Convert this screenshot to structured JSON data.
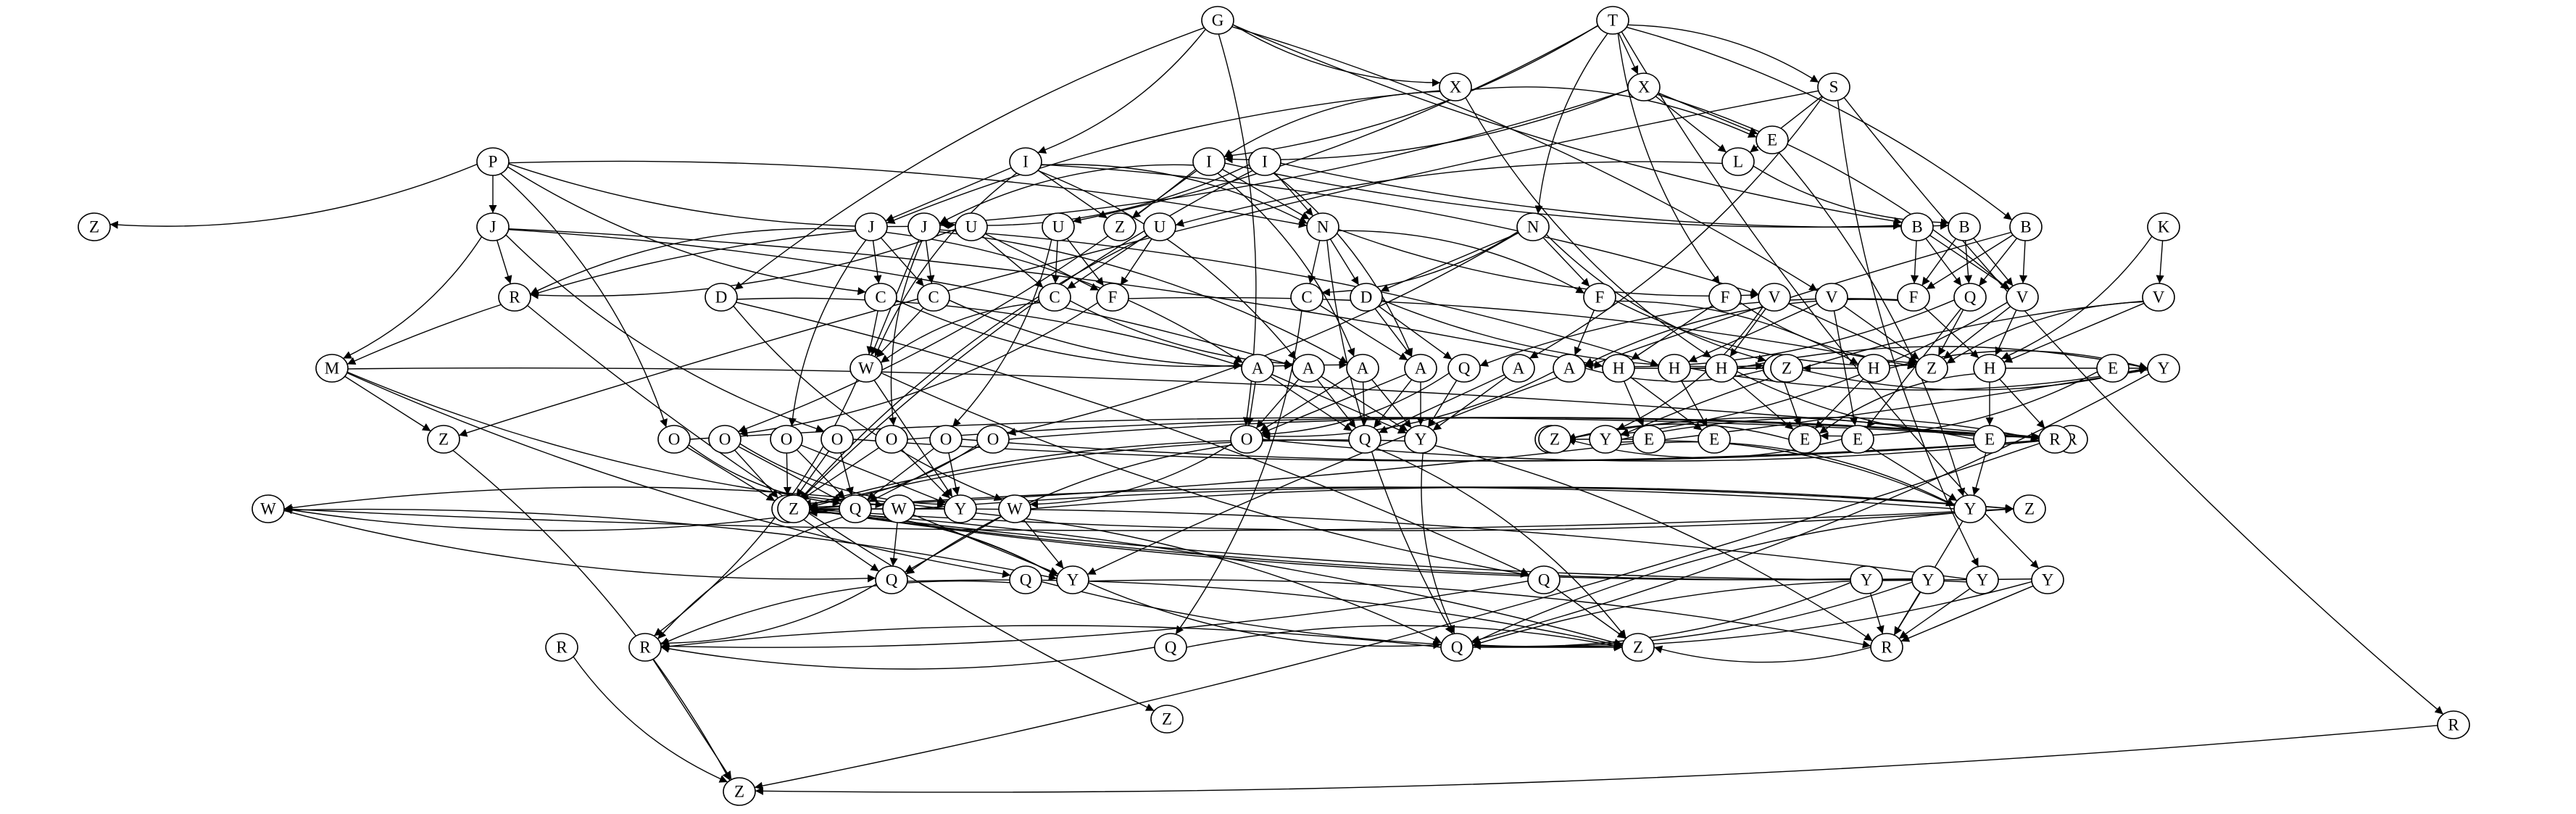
{
  "graph": {
    "nodes": [
      {
        "id": "n_T",
        "label": "T"
      },
      {
        "id": "n_G",
        "label": "G"
      },
      {
        "id": "n_X2",
        "label": "X"
      },
      {
        "id": "n_S",
        "label": "S"
      },
      {
        "id": "n_X1",
        "label": "X"
      },
      {
        "id": "n_E1",
        "label": "E"
      },
      {
        "id": "n_L",
        "label": "L"
      },
      {
        "id": "n_P",
        "label": "P"
      },
      {
        "id": "n_I1",
        "label": "I"
      },
      {
        "id": "n_I2",
        "label": "I"
      },
      {
        "id": "n_I3",
        "label": "I"
      },
      {
        "id": "n_Z1",
        "label": "Z"
      },
      {
        "id": "n_J1",
        "label": "J"
      },
      {
        "id": "n_J2",
        "label": "J"
      },
      {
        "id": "n_J3",
        "label": "J"
      },
      {
        "id": "n_U1",
        "label": "U"
      },
      {
        "id": "n_U2",
        "label": "U"
      },
      {
        "id": "n_U3",
        "label": "U"
      },
      {
        "id": "n_Z2",
        "label": "Z"
      },
      {
        "id": "n_N1",
        "label": "N"
      },
      {
        "id": "n_N2",
        "label": "N"
      },
      {
        "id": "n_B1",
        "label": "B"
      },
      {
        "id": "n_B2",
        "label": "B"
      },
      {
        "id": "n_B3",
        "label": "B"
      },
      {
        "id": "n_K",
        "label": "K"
      },
      {
        "id": "n_R1",
        "label": "R"
      },
      {
        "id": "n_C1",
        "label": "C"
      },
      {
        "id": "n_C2",
        "label": "C"
      },
      {
        "id": "n_C3",
        "label": "C"
      },
      {
        "id": "n_C4",
        "label": "C"
      },
      {
        "id": "n_F1",
        "label": "F"
      },
      {
        "id": "n_D1",
        "label": "D"
      },
      {
        "id": "n_D2",
        "label": "D"
      },
      {
        "id": "n_F2",
        "label": "F"
      },
      {
        "id": "n_F3",
        "label": "F"
      },
      {
        "id": "n_F4",
        "label": "F"
      },
      {
        "id": "n_V1",
        "label": "V"
      },
      {
        "id": "n_V2",
        "label": "V"
      },
      {
        "id": "n_V3",
        "label": "V"
      },
      {
        "id": "n_V4",
        "label": "V"
      },
      {
        "id": "n_Q1",
        "label": "Q"
      },
      {
        "id": "n_M",
        "label": "M"
      },
      {
        "id": "n_W1",
        "label": "W"
      },
      {
        "id": "n_A1",
        "label": "A"
      },
      {
        "id": "n_A2",
        "label": "A"
      },
      {
        "id": "n_A3",
        "label": "A"
      },
      {
        "id": "n_A4",
        "label": "A"
      },
      {
        "id": "n_A5",
        "label": "A"
      },
      {
        "id": "n_Q2",
        "label": "Q"
      },
      {
        "id": "n_A6",
        "label": "A"
      },
      {
        "id": "n_H1",
        "label": "H"
      },
      {
        "id": "n_H2",
        "label": "H"
      },
      {
        "id": "n_H3",
        "label": "H"
      },
      {
        "id": "n_H4",
        "label": "H"
      },
      {
        "id": "n_H5",
        "label": "H"
      },
      {
        "id": "n_H6",
        "label": "H"
      },
      {
        "id": "n_Z3",
        "label": "Z"
      },
      {
        "id": "n_Z4",
        "label": "Z"
      },
      {
        "id": "n_E2",
        "label": "E"
      },
      {
        "id": "n_Y1",
        "label": "Y"
      },
      {
        "id": "n_Z5",
        "label": "Z"
      },
      {
        "id": "n_O1",
        "label": "O"
      },
      {
        "id": "n_O2",
        "label": "O"
      },
      {
        "id": "n_O3",
        "label": "O"
      },
      {
        "id": "n_O4",
        "label": "O"
      },
      {
        "id": "n_O5",
        "label": "O"
      },
      {
        "id": "n_O6",
        "label": "O"
      },
      {
        "id": "n_O7",
        "label": "O"
      },
      {
        "id": "n_O8",
        "label": "O"
      },
      {
        "id": "n_Q3",
        "label": "Q"
      },
      {
        "id": "n_Y2",
        "label": "Y"
      },
      {
        "id": "n_E3",
        "label": "E"
      },
      {
        "id": "n_Z6",
        "label": "Z"
      },
      {
        "id": "n_Y3",
        "label": "Y"
      },
      {
        "id": "n_E4",
        "label": "E"
      },
      {
        "id": "n_E5",
        "label": "E"
      },
      {
        "id": "n_E6",
        "label": "E"
      },
      {
        "id": "n_R2",
        "label": "R"
      },
      {
        "id": "n_Z7",
        "label": "Z"
      },
      {
        "id": "n_E7",
        "label": "E"
      },
      {
        "id": "n_R3",
        "label": "R"
      },
      {
        "id": "n_Q4",
        "label": "Q"
      },
      {
        "id": "n_W2",
        "label": "W"
      },
      {
        "id": "n_Y4",
        "label": "Y"
      },
      {
        "id": "n_W3",
        "label": "W"
      },
      {
        "id": "n_Y5",
        "label": "Y"
      },
      {
        "id": "n_Z8",
        "label": "Z"
      },
      {
        "id": "n_W4",
        "label": "W"
      },
      {
        "id": "n_W5",
        "label": "W"
      },
      {
        "id": "n_Z9",
        "label": "Z"
      },
      {
        "id": "n_Q5",
        "label": "Q"
      },
      {
        "id": "n_Y6",
        "label": "Y"
      },
      {
        "id": "n_Y7",
        "label": "Y"
      },
      {
        "id": "n_Y8",
        "label": "Y"
      },
      {
        "id": "n_Y9",
        "label": "Y"
      },
      {
        "id": "n_Y10",
        "label": "Y"
      },
      {
        "id": "n_Q6",
        "label": "Q"
      },
      {
        "id": "n_Q7",
        "label": "Q"
      },
      {
        "id": "n_Q8",
        "label": "Q"
      },
      {
        "id": "n_Z10",
        "label": "Z"
      },
      {
        "id": "n_R4",
        "label": "R"
      },
      {
        "id": "n_Q9",
        "label": "Q"
      },
      {
        "id": "n_R5",
        "label": "R"
      },
      {
        "id": "n_R6",
        "label": "R"
      },
      {
        "id": "n_Z11",
        "label": "Z"
      },
      {
        "id": "n_R7",
        "label": "R"
      },
      {
        "id": "n_Z12",
        "label": "Z"
      }
    ],
    "edges": [
      [
        "n_T",
        "n_X2"
      ],
      [
        "n_T",
        "n_S"
      ],
      [
        "n_T",
        "n_N2"
      ],
      [
        "n_T",
        "n_I2"
      ],
      [
        "n_T",
        "n_U2"
      ],
      [
        "n_T",
        "n_F4"
      ],
      [
        "n_T",
        "n_B3"
      ],
      [
        "n_T",
        "n_Y7"
      ],
      [
        "n_G",
        "n_X1"
      ],
      [
        "n_G",
        "n_I1"
      ],
      [
        "n_G",
        "n_D1"
      ],
      [
        "n_G",
        "n_O1"
      ],
      [
        "n_G",
        "n_B1"
      ],
      [
        "n_G",
        "n_V2"
      ],
      [
        "n_X1",
        "n_I2"
      ],
      [
        "n_X1",
        "n_J1"
      ],
      [
        "n_X1",
        "n_E1"
      ],
      [
        "n_X1",
        "n_H3"
      ],
      [
        "n_X2",
        "n_L"
      ],
      [
        "n_X2",
        "n_E1"
      ],
      [
        "n_X2",
        "n_J3"
      ],
      [
        "n_X2",
        "n_I2"
      ],
      [
        "n_X2",
        "n_V3"
      ],
      [
        "n_S",
        "n_L"
      ],
      [
        "n_S",
        "n_A5"
      ],
      [
        "n_S",
        "n_R7"
      ],
      [
        "n_S",
        "n_Z5"
      ],
      [
        "n_S",
        "n_Y8"
      ],
      [
        "n_L",
        "n_U3"
      ],
      [
        "n_L",
        "n_B2"
      ],
      [
        "n_E1",
        "n_Y4"
      ],
      [
        "n_P",
        "n_J2"
      ],
      [
        "n_P",
        "n_Z1"
      ],
      [
        "n_P",
        "n_O2"
      ],
      [
        "n_P",
        "n_C1"
      ],
      [
        "n_P",
        "n_U1"
      ],
      [
        "n_P",
        "n_N1"
      ],
      [
        "n_I1",
        "n_J1"
      ],
      [
        "n_I1",
        "n_Z2"
      ],
      [
        "n_I1",
        "n_N1"
      ],
      [
        "n_I1",
        "n_W1"
      ],
      [
        "n_I1",
        "n_A2"
      ],
      [
        "n_I1",
        "n_V1"
      ],
      [
        "n_I2",
        "n_J3"
      ],
      [
        "n_I2",
        "n_Z2"
      ],
      [
        "n_I2",
        "n_N1"
      ],
      [
        "n_I2",
        "n_A3"
      ],
      [
        "n_I2",
        "n_O3"
      ],
      [
        "n_I2",
        "n_B1"
      ],
      [
        "n_I3",
        "n_J3"
      ],
      [
        "n_I3",
        "n_N1"
      ],
      [
        "n_I3",
        "n_W3"
      ],
      [
        "n_I3",
        "n_A4"
      ],
      [
        "n_I3",
        "n_B2"
      ],
      [
        "n_J1",
        "n_R1"
      ],
      [
        "n_J1",
        "n_M"
      ],
      [
        "n_J1",
        "n_C2"
      ],
      [
        "n_J1",
        "n_C1"
      ],
      [
        "n_J1",
        "n_A1"
      ],
      [
        "n_J1",
        "n_O4"
      ],
      [
        "n_J2",
        "n_R1"
      ],
      [
        "n_J2",
        "n_M"
      ],
      [
        "n_J2",
        "n_O5"
      ],
      [
        "n_J2",
        "n_A2"
      ],
      [
        "n_J2",
        "n_H1"
      ],
      [
        "n_J3",
        "n_C2"
      ],
      [
        "n_J3",
        "n_W1"
      ],
      [
        "n_J3",
        "n_O6"
      ],
      [
        "n_J3",
        "n_A3"
      ],
      [
        "n_J3",
        "n_H2"
      ],
      [
        "n_U1",
        "n_C3"
      ],
      [
        "n_U1",
        "n_F1"
      ],
      [
        "n_U1",
        "n_R1"
      ],
      [
        "n_U2",
        "n_C3"
      ],
      [
        "n_U2",
        "n_F1"
      ],
      [
        "n_U2",
        "n_O7"
      ],
      [
        "n_U3",
        "n_C3"
      ],
      [
        "n_U3",
        "n_F1"
      ],
      [
        "n_U3",
        "n_W3"
      ],
      [
        "n_N1",
        "n_C4"
      ],
      [
        "n_N1",
        "n_D2"
      ],
      [
        "n_N1",
        "n_F2"
      ],
      [
        "n_N1",
        "n_V1"
      ],
      [
        "n_N1",
        "n_Q8"
      ],
      [
        "n_N2",
        "n_C4"
      ],
      [
        "n_N2",
        "n_D2"
      ],
      [
        "n_N2",
        "n_F2"
      ],
      [
        "n_N2",
        "n_H4"
      ],
      [
        "n_N2",
        "n_O8"
      ],
      [
        "n_B1",
        "n_F3"
      ],
      [
        "n_B1",
        "n_Q1"
      ],
      [
        "n_B1",
        "n_V3"
      ],
      [
        "n_B2",
        "n_F3"
      ],
      [
        "n_B2",
        "n_Q1"
      ],
      [
        "n_B2",
        "n_V3"
      ],
      [
        "n_B3",
        "n_F3"
      ],
      [
        "n_B3",
        "n_Q1"
      ],
      [
        "n_B3",
        "n_V3"
      ],
      [
        "n_B3",
        "n_Y6"
      ],
      [
        "n_K",
        "n_V4"
      ],
      [
        "n_K",
        "n_H6"
      ],
      [
        "n_R1",
        "n_Z12"
      ],
      [
        "n_C1",
        "n_A1"
      ],
      [
        "n_C1",
        "n_W1"
      ],
      [
        "n_C2",
        "n_A2"
      ],
      [
        "n_C2",
        "n_W1"
      ],
      [
        "n_C3",
        "n_A3"
      ],
      [
        "n_C3",
        "n_W1"
      ],
      [
        "n_C4",
        "n_A4"
      ],
      [
        "n_C4",
        "n_Q9"
      ],
      [
        "n_F1",
        "n_O3"
      ],
      [
        "n_F1",
        "n_Z4"
      ],
      [
        "n_D1",
        "n_A1"
      ],
      [
        "n_D1",
        "n_W4"
      ],
      [
        "n_D1",
        "n_Q7"
      ],
      [
        "n_D2",
        "n_A4"
      ],
      [
        "n_D2",
        "n_Q2"
      ],
      [
        "n_D2",
        "n_H4"
      ],
      [
        "n_F2",
        "n_A6"
      ],
      [
        "n_F2",
        "n_H5"
      ],
      [
        "n_F2",
        "n_Z4"
      ],
      [
        "n_F3",
        "n_Q2"
      ],
      [
        "n_F3",
        "n_H6"
      ],
      [
        "n_F3",
        "n_A6"
      ],
      [
        "n_F4",
        "n_Z4"
      ],
      [
        "n_F4",
        "n_H1"
      ],
      [
        "n_V1",
        "n_Z4"
      ],
      [
        "n_V1",
        "n_H3"
      ],
      [
        "n_V1",
        "n_Y3"
      ],
      [
        "n_V2",
        "n_Z4"
      ],
      [
        "n_V2",
        "n_H2"
      ],
      [
        "n_V2",
        "n_E6"
      ],
      [
        "n_V3",
        "n_Z4"
      ],
      [
        "n_V3",
        "n_H6"
      ],
      [
        "n_V3",
        "n_Y3"
      ],
      [
        "n_V4",
        "n_Z4"
      ],
      [
        "n_V4",
        "n_Y3"
      ],
      [
        "n_V4",
        "n_H6"
      ],
      [
        "n_Q1",
        "n_Z4"
      ],
      [
        "n_Q1",
        "n_A6"
      ],
      [
        "n_Q1",
        "n_E6"
      ],
      [
        "n_M",
        "n_Z5"
      ],
      [
        "n_M",
        "n_W2"
      ],
      [
        "n_M",
        "n_R2"
      ],
      [
        "n_M",
        "n_Q6"
      ],
      [
        "n_W1",
        "n_Q7"
      ],
      [
        "n_W1",
        "n_Y5"
      ],
      [
        "n_W1",
        "n_R5"
      ],
      [
        "n_A1",
        "n_O1"
      ],
      [
        "n_A1",
        "n_Q3"
      ],
      [
        "n_A1",
        "n_Y2"
      ],
      [
        "n_A2",
        "n_O1"
      ],
      [
        "n_A2",
        "n_Q3"
      ],
      [
        "n_A2",
        "n_Y2"
      ],
      [
        "n_A3",
        "n_O1"
      ],
      [
        "n_A3",
        "n_Q3"
      ],
      [
        "n_A3",
        "n_Y2"
      ],
      [
        "n_A4",
        "n_Q3"
      ],
      [
        "n_A4",
        "n_Y2"
      ],
      [
        "n_A4",
        "n_O1"
      ],
      [
        "n_A5",
        "n_Q3"
      ],
      [
        "n_A5",
        "n_Y2"
      ],
      [
        "n_A6",
        "n_O1"
      ],
      [
        "n_A6",
        "n_Z3"
      ],
      [
        "n_Q2",
        "n_O1"
      ],
      [
        "n_Q2",
        "n_Y2"
      ],
      [
        "n_H1",
        "n_Z3"
      ],
      [
        "n_H1",
        "n_E3"
      ],
      [
        "n_H1",
        "n_E4"
      ],
      [
        "n_H2",
        "n_Y1"
      ],
      [
        "n_H2",
        "n_E4"
      ],
      [
        "n_H2",
        "n_Z3"
      ],
      [
        "n_H3",
        "n_Y1"
      ],
      [
        "n_H3",
        "n_E5"
      ],
      [
        "n_H3",
        "n_R3"
      ],
      [
        "n_H4",
        "n_Y1"
      ],
      [
        "n_H4",
        "n_E5"
      ],
      [
        "n_H4",
        "n_Z3"
      ],
      [
        "n_H5",
        "n_Y1"
      ],
      [
        "n_H5",
        "n_E5"
      ],
      [
        "n_H5",
        "n_Z3"
      ],
      [
        "n_H6",
        "n_Y1"
      ],
      [
        "n_H6",
        "n_E5"
      ],
      [
        "n_H6",
        "n_E7"
      ],
      [
        "n_H6",
        "n_R3"
      ],
      [
        "n_E2",
        "n_E5"
      ],
      [
        "n_Y1",
        "n_Q8"
      ],
      [
        "n_Y1",
        "n_Z9"
      ],
      [
        "n_E3",
        "n_Y4"
      ],
      [
        "n_Y3",
        "n_Y4"
      ],
      [
        "n_Y3",
        "n_R3"
      ],
      [
        "n_E6",
        "n_Y4"
      ],
      [
        "n_E6",
        "n_Z6"
      ],
      [
        "n_E7",
        "n_Y4"
      ],
      [
        "n_E7",
        "n_Z6"
      ],
      [
        "n_E5",
        "n_Z6"
      ],
      [
        "n_O1",
        "n_R2"
      ],
      [
        "n_O1",
        "n_Q5"
      ],
      [
        "n_O1",
        "n_W4"
      ],
      [
        "n_O2",
        "n_R2"
      ],
      [
        "n_O2",
        "n_Q4"
      ],
      [
        "n_O2",
        "n_W3"
      ],
      [
        "n_O3",
        "n_Q4"
      ],
      [
        "n_O3",
        "n_W3"
      ],
      [
        "n_O3",
        "n_Y5"
      ],
      [
        "n_O4",
        "n_Q4"
      ],
      [
        "n_O4",
        "n_W3"
      ],
      [
        "n_O4",
        "n_Y5"
      ],
      [
        "n_O5",
        "n_R2"
      ],
      [
        "n_O5",
        "n_Q4"
      ],
      [
        "n_O5",
        "n_W3"
      ],
      [
        "n_O6",
        "n_R2"
      ],
      [
        "n_O6",
        "n_W3"
      ],
      [
        "n_O6",
        "n_Y5"
      ],
      [
        "n_O7",
        "n_R2"
      ],
      [
        "n_O7",
        "n_Q4"
      ],
      [
        "n_O7",
        "n_Y5"
      ],
      [
        "n_O8",
        "n_R2"
      ],
      [
        "n_O8",
        "n_Q4"
      ],
      [
        "n_O8",
        "n_W3"
      ],
      [
        "n_Q3",
        "n_W3"
      ],
      [
        "n_Q3",
        "n_Z10"
      ],
      [
        "n_Y2",
        "n_Q8"
      ],
      [
        "n_Y2",
        "n_Z9"
      ],
      [
        "n_Y2",
        "n_R4"
      ],
      [
        "n_Y4",
        "n_Z9"
      ],
      [
        "n_Y4",
        "n_Q8"
      ],
      [
        "n_Y4",
        "n_R4"
      ],
      [
        "n_W2",
        "n_Z8"
      ],
      [
        "n_W2",
        "n_Q5"
      ],
      [
        "n_W2",
        "n_Y6"
      ],
      [
        "n_W3",
        "n_Z8"
      ],
      [
        "n_W3",
        "n_Q5"
      ],
      [
        "n_W3",
        "n_Y6"
      ],
      [
        "n_W3",
        "n_Z10"
      ],
      [
        "n_W4",
        "n_Z8"
      ],
      [
        "n_W4",
        "n_Y6"
      ],
      [
        "n_W4",
        "n_Q5"
      ],
      [
        "n_W5",
        "n_Z8"
      ],
      [
        "n_W5",
        "n_Q5"
      ],
      [
        "n_W5",
        "n_Y6"
      ],
      [
        "n_Q4",
        "n_W5"
      ],
      [
        "n_Q4",
        "n_R5"
      ],
      [
        "n_Y5",
        "n_Z9"
      ],
      [
        "n_Y5",
        "n_Q8"
      ],
      [
        "n_Y5",
        "n_W5"
      ],
      [
        "n_Q5",
        "n_R5"
      ],
      [
        "n_Q5",
        "n_Z10"
      ],
      [
        "n_Y6",
        "n_Q8"
      ],
      [
        "n_Y6",
        "n_Z9"
      ],
      [
        "n_Y6",
        "n_R4"
      ],
      [
        "n_Y7",
        "n_Q8"
      ],
      [
        "n_Y7",
        "n_Z9"
      ],
      [
        "n_Y7",
        "n_R4"
      ],
      [
        "n_Y8",
        "n_Q8"
      ],
      [
        "n_Y8",
        "n_Z9"
      ],
      [
        "n_Y8",
        "n_R4"
      ],
      [
        "n_Y9",
        "n_Q8"
      ],
      [
        "n_Y9",
        "n_Z9"
      ],
      [
        "n_Y9",
        "n_R4"
      ],
      [
        "n_Y10",
        "n_Q8"
      ],
      [
        "n_Y10",
        "n_Z9"
      ],
      [
        "n_Y10",
        "n_R4"
      ],
      [
        "n_Q6",
        "n_R5"
      ],
      [
        "n_Q6",
        "n_Z10"
      ],
      [
        "n_Q7",
        "n_R5"
      ],
      [
        "n_Q7",
        "n_Z10"
      ],
      [
        "n_Q8",
        "n_R5"
      ],
      [
        "n_Q8",
        "n_Z10"
      ],
      [
        "n_Q9",
        "n_R5"
      ],
      [
        "n_Q9",
        "n_Z10"
      ],
      [
        "n_R4",
        "n_Z10"
      ],
      [
        "n_R5",
        "n_Z11"
      ],
      [
        "n_R6",
        "n_Z11"
      ],
      [
        "n_R7",
        "n_Z11"
      ],
      [
        "n_E3",
        "n_Z6"
      ],
      [
        "n_R3",
        "n_Z11"
      ],
      [
        "n_Z5",
        "n_Z11"
      ]
    ]
  }
}
